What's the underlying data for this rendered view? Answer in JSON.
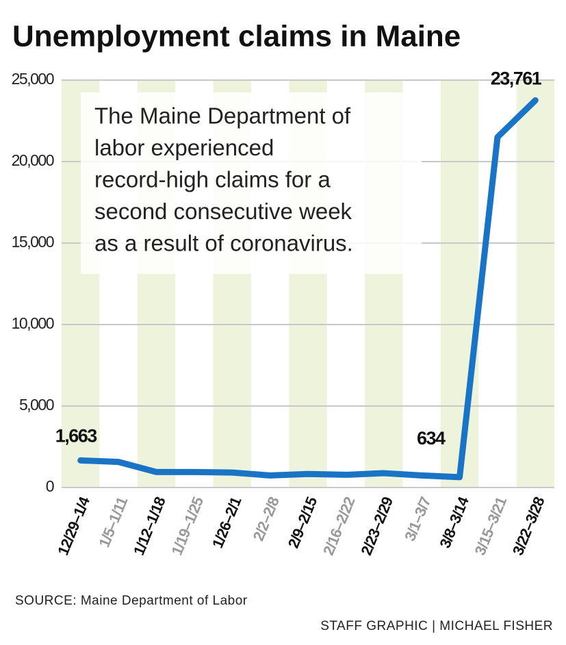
{
  "chart_data": {
    "type": "line",
    "title": "Unemployment claims in Maine",
    "annotation": [
      "The Maine Department of",
      "labor experienced",
      "record-high claims for a",
      "second consecutive week",
      "as a result of coronavirus."
    ],
    "categories": [
      "12/29–1/4",
      "1/5–1/11",
      "1/12–1/18",
      "1/19–1/25",
      "1/26–2/1",
      "2/2–2/8",
      "2/9–2/15",
      "2/16–2/22",
      "2/23–2/29",
      "3/1–3/7",
      "3/8–3/14",
      "3/15–3/21",
      "3/22–3/28"
    ],
    "values": [
      1663,
      1570,
      950,
      950,
      920,
      740,
      830,
      780,
      880,
      740,
      634,
      21500,
      23761
    ],
    "value_labels": [
      "1,663",
      null,
      null,
      null,
      null,
      null,
      null,
      null,
      null,
      null,
      "634",
      null,
      "23,761"
    ],
    "color": "#1a74c6",
    "ylim": [
      0,
      25000
    ],
    "yticks": [
      0,
      {
        "value": 5000,
        "label": "5,000"
      },
      {
        "value": 10000,
        "label": "10,000"
      },
      {
        "value": 15000,
        "label": "15,000"
      },
      {
        "value": 20000,
        "label": "20,000"
      },
      {
        "value": 25000,
        "label": "25,000"
      }
    ],
    "grid": true,
    "source": "SOURCE: Maine Department of Labor",
    "credit": "STAFF GRAPHIC | MICHAEL FISHER"
  }
}
